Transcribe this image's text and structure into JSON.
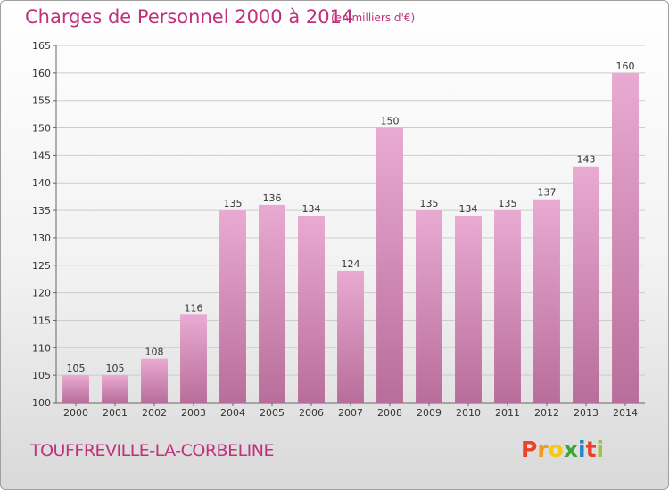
{
  "header": {
    "title": "Charges de Personnel 2000 à 2014",
    "unit": "(en milliers d'€)"
  },
  "footer": {
    "commune": "TOUFFREVILLE-LA-CORBELINE",
    "logo": "Proxiti",
    "logo_colors": [
      "#e8412c",
      "#f29a1f",
      "#f6c90e",
      "#3aa635",
      "#1f86c9",
      "#e8412c",
      "#9bc53d"
    ]
  },
  "colors": {
    "bar_light": "#e9aad2",
    "bar_dark": "#b86e9a",
    "grid": "#cccccc",
    "accent": "#c0307c"
  },
  "chart_data": {
    "type": "bar",
    "title": "Charges de Personnel 2000 à 2014",
    "subtitle": "(en milliers d'€)",
    "xlabel": "",
    "ylabel": "",
    "categories": [
      "2000",
      "2001",
      "2002",
      "2003",
      "2004",
      "2005",
      "2006",
      "2007",
      "2008",
      "2009",
      "2010",
      "2011",
      "2012",
      "2013",
      "2014"
    ],
    "values": [
      105,
      105,
      108,
      116,
      135,
      136,
      134,
      124,
      150,
      135,
      134,
      135,
      137,
      143,
      160
    ],
    "ylim": [
      100,
      165
    ],
    "yticks": [
      100,
      105,
      110,
      115,
      120,
      125,
      130,
      135,
      140,
      145,
      150,
      155,
      160,
      165
    ],
    "grid": true,
    "data_labels": true
  }
}
